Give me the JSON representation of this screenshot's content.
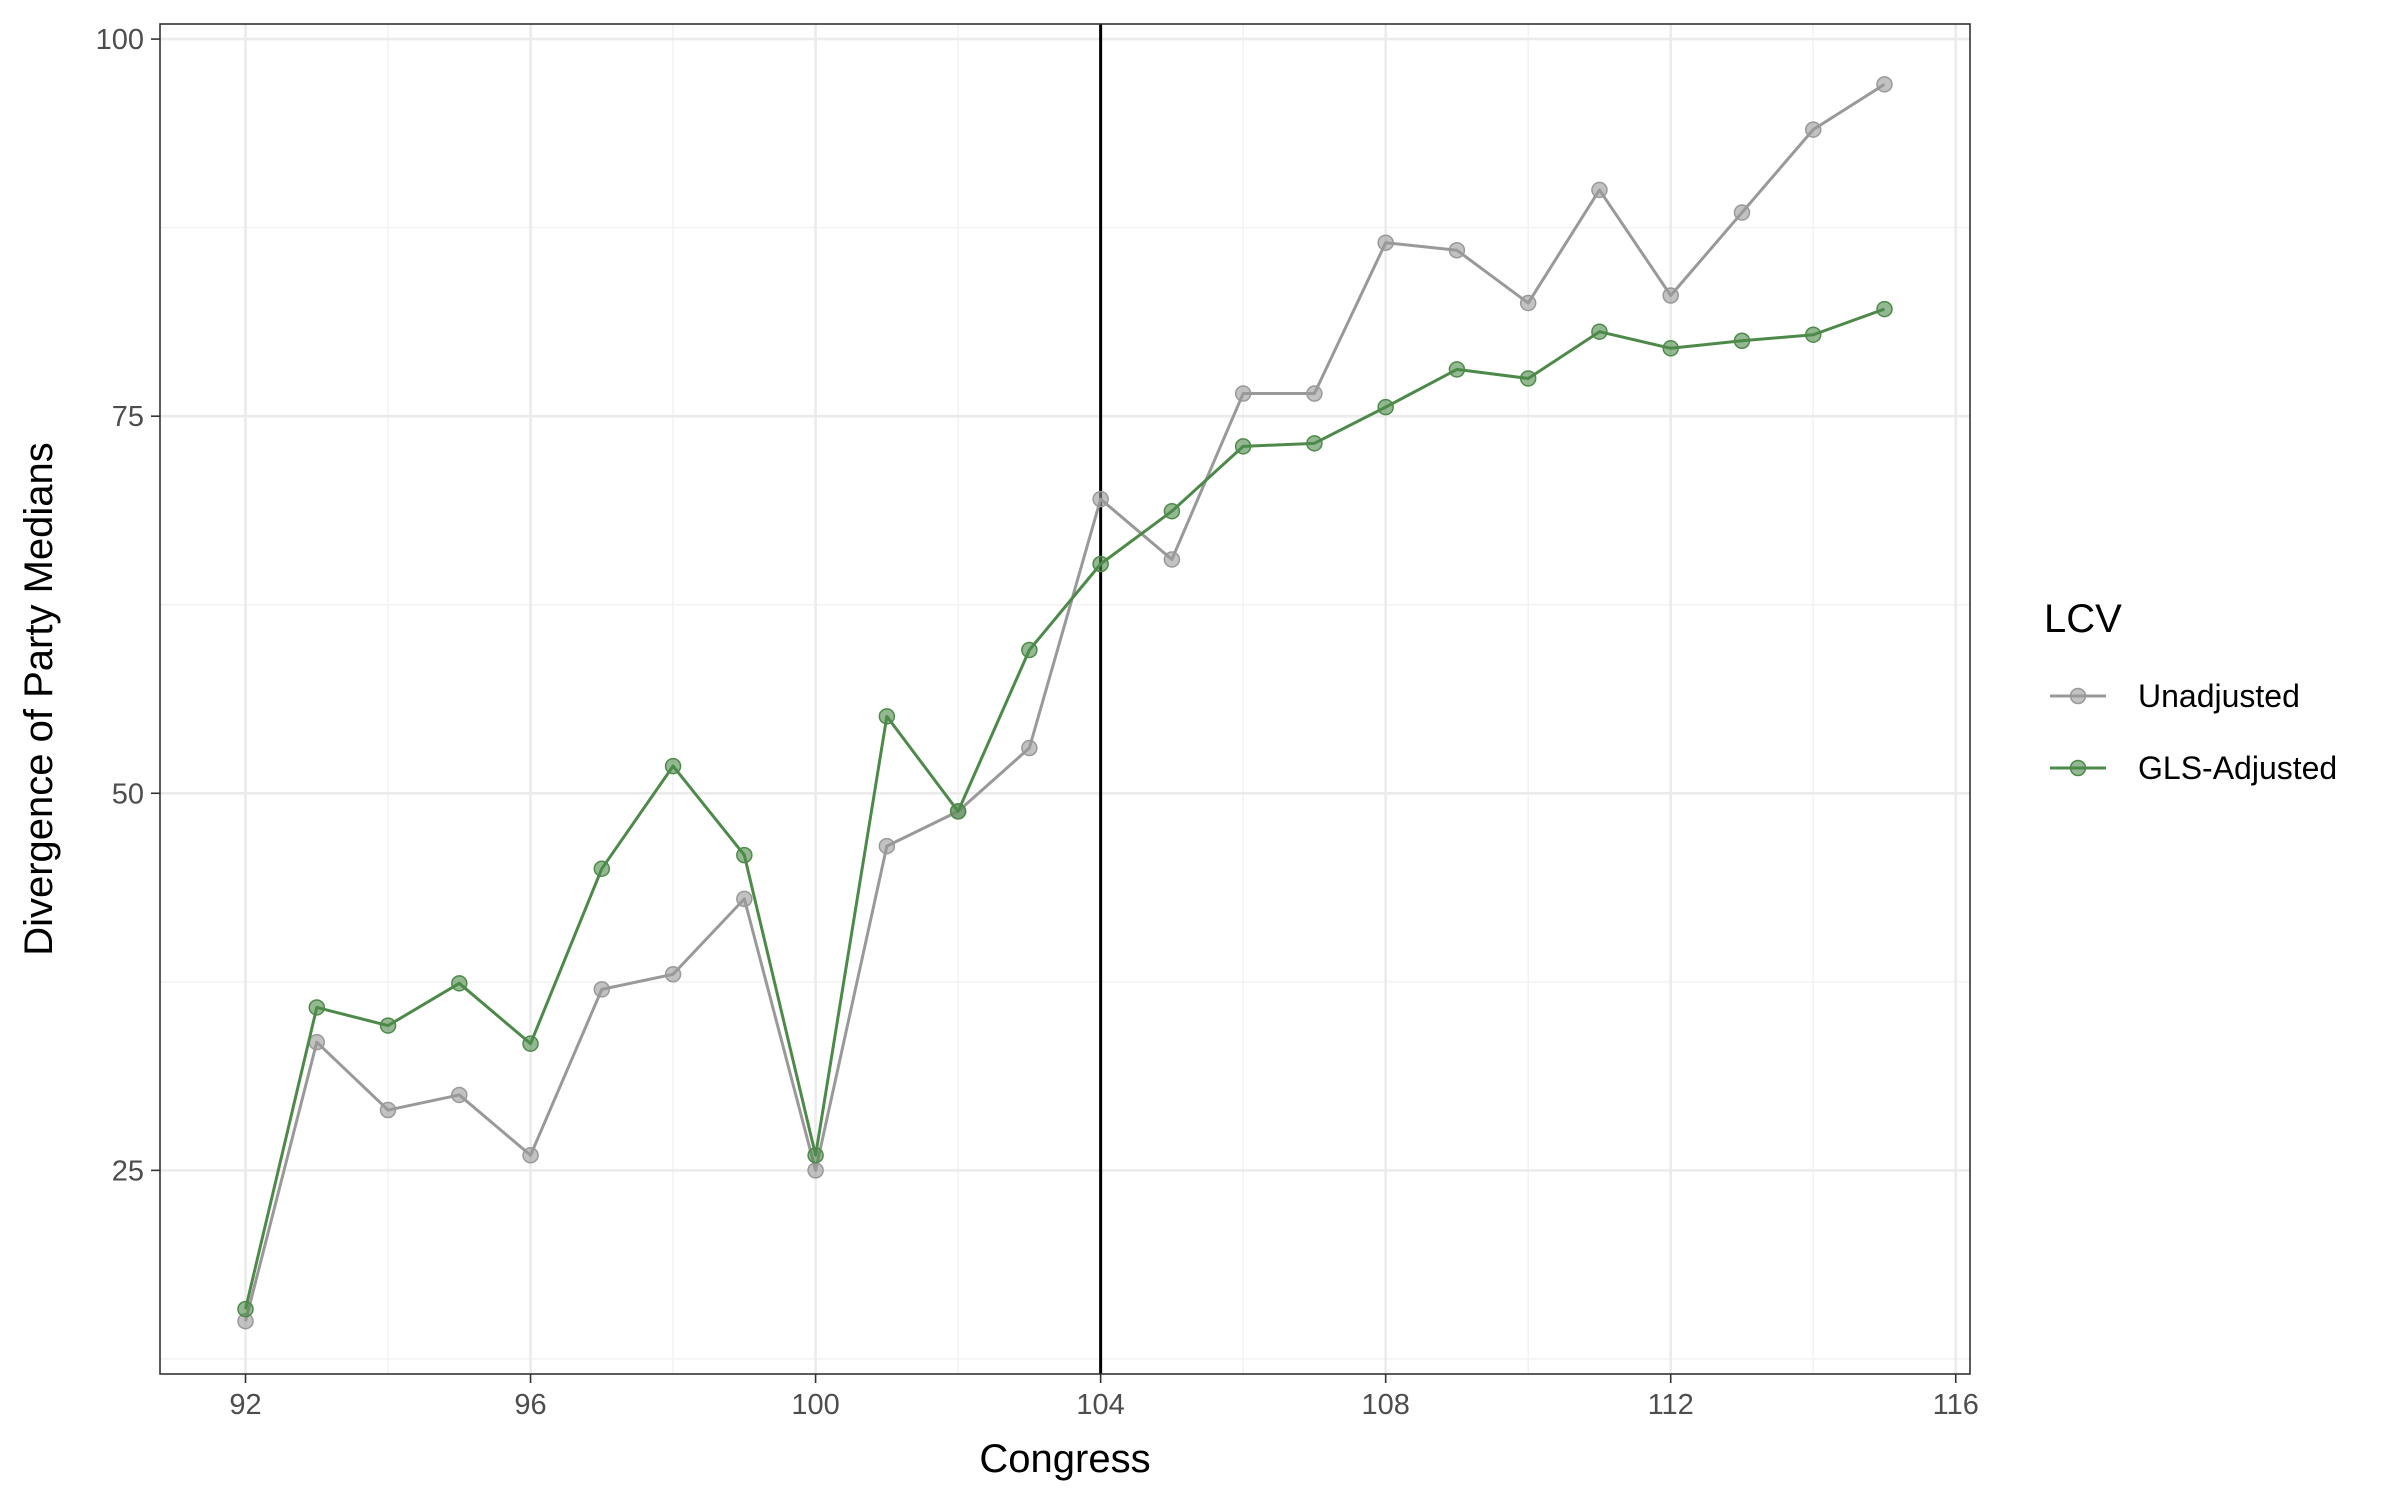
{
  "chart_data": {
    "type": "line",
    "title": "",
    "xlabel": "Congress",
    "ylabel": "Divergence of Party Medians",
    "xlim": [
      90.8,
      116.2
    ],
    "ylim": [
      11.5,
      101
    ],
    "x_ticks": [
      92,
      96,
      100,
      104,
      108,
      112,
      116
    ],
    "y_ticks": [
      25,
      50,
      75,
      100
    ],
    "grid": true,
    "vertical_reference_line": 104,
    "legend": {
      "title": "LCV",
      "position": "right"
    },
    "x": [
      92,
      93,
      94,
      95,
      96,
      97,
      98,
      99,
      100,
      101,
      102,
      103,
      104,
      105,
      106,
      107,
      108,
      109,
      110,
      111,
      112,
      113,
      114,
      115
    ],
    "series": [
      {
        "name": "Unadjusted",
        "color": "#999999",
        "values": [
          15.0,
          33.5,
          29.0,
          30.0,
          26.0,
          37.0,
          38.0,
          43.0,
          25.0,
          46.5,
          48.8,
          53.0,
          69.5,
          65.5,
          76.5,
          76.5,
          86.5,
          86.0,
          82.5,
          90.0,
          83.0,
          88.5,
          94.0,
          97.0
        ]
      },
      {
        "name": "GLS-Adjusted",
        "color": "#4d8a4a",
        "values": [
          15.8,
          35.8,
          34.6,
          37.4,
          33.4,
          45.0,
          51.8,
          45.9,
          26.0,
          55.1,
          48.8,
          59.5,
          65.2,
          68.7,
          73.0,
          73.2,
          75.6,
          78.1,
          77.5,
          80.6,
          79.5,
          80.0,
          80.4,
          82.1
        ]
      }
    ]
  }
}
